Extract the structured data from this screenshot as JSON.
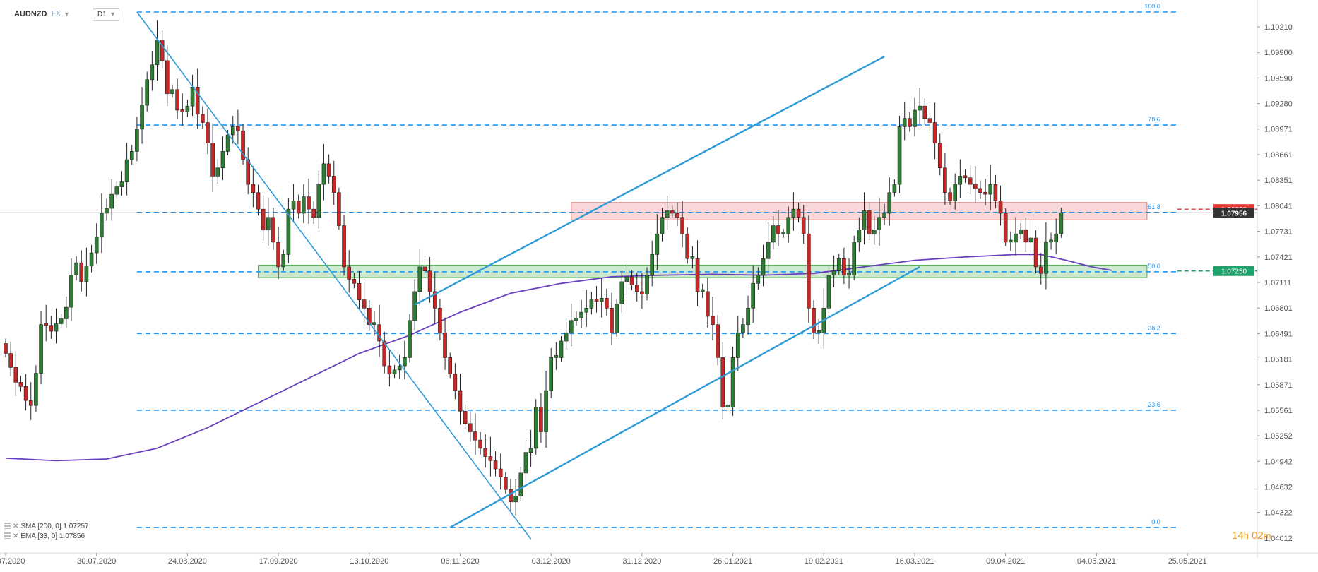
{
  "header": {
    "symbol": "AUDNZD",
    "market": "FX",
    "timeframe": "D1"
  },
  "indicators": [
    {
      "label": "SMA [200, 0] 1.07257"
    },
    {
      "label": "EMA [33, 0] 1.07856"
    }
  ],
  "countdown": {
    "hours": "14",
    "h_unit": "h",
    "minutes": "02",
    "m_unit": "m"
  },
  "colors": {
    "bull": "#2e7d32",
    "bear": "#c62828",
    "sma": "#6a3fbf",
    "trend": "#2f9bd8",
    "fib": "#2196f3",
    "resistance_zone": "#e57373",
    "support_zone": "#4caf50"
  },
  "chart_data": {
    "type": "candlestick",
    "symbol": "AUDNZD",
    "timeframe": "D1",
    "y_axis": {
      "ticks": [
        1.1021,
        1.099,
        1.0959,
        1.0928,
        1.08971,
        1.08661,
        1.08351,
        1.08041,
        1.07731,
        1.07421,
        1.07111,
        1.06801,
        1.06491,
        1.06181,
        1.05871,
        1.05561,
        1.05252,
        1.04942,
        1.04632,
        1.04322,
        1.04012
      ],
      "ylim": [
        1.039,
        1.1045
      ]
    },
    "x_axis": {
      "labels": [
        "06.07.2020",
        "30.07.2020",
        "24.08.2020",
        "17.09.2020",
        "13.10.2020",
        "06.11.2020",
        "03.12.2020",
        "31.12.2020",
        "26.01.2021",
        "19.02.2021",
        "16.03.2021",
        "09.04.2021",
        "04.05.2021",
        "25.05.2021"
      ],
      "label_bar_index": [
        0,
        18,
        36,
        54,
        72,
        90,
        108,
        126,
        144,
        162,
        180,
        198,
        216,
        234
      ]
    },
    "candles_close": [
      1.0625,
      1.0608,
      1.059,
      1.0585,
      1.0568,
      1.0562,
      1.0601,
      1.066,
      1.0659,
      1.0652,
      1.0661,
      1.0667,
      1.0681,
      1.072,
      1.0735,
      1.0712,
      1.0731,
      1.0747,
      1.0766,
      1.0795,
      1.0801,
      1.0818,
      1.0827,
      1.0833,
      1.086,
      1.087,
      1.0897,
      1.0926,
      1.0957,
      1.0975,
      1.1005,
      1.098,
      1.094,
      1.0945,
      1.092,
      1.0918,
      1.0925,
      1.0948,
      1.0915,
      1.0905,
      1.088,
      1.084,
      1.085,
      1.087,
      1.089,
      1.09,
      1.0895,
      1.086,
      1.083,
      1.082,
      1.08,
      1.0775,
      1.079,
      1.076,
      1.073,
      1.0745,
      1.08,
      1.081,
      1.0795,
      1.0815,
      1.08,
      1.079,
      1.083,
      1.0855,
      1.084,
      1.082,
      1.078,
      1.073,
      1.0715,
      1.071,
      1.069,
      1.068,
      1.066,
      1.066,
      1.064,
      1.061,
      1.06,
      1.0605,
      1.061,
      1.062,
      1.0665,
      1.07,
      1.073,
      1.0725,
      1.07,
      1.068,
      1.065,
      1.062,
      1.06,
      1.058,
      1.0555,
      1.054,
      1.053,
      1.052,
      1.051,
      1.05,
      1.0495,
      1.0485,
      1.0475,
      1.046,
      1.0445,
      1.0452,
      1.048,
      1.0505,
      1.051,
      1.056,
      1.053,
      1.058,
      1.062,
      1.062,
      1.064,
      1.065,
      1.0665,
      1.0668,
      1.0675,
      1.068,
      1.069,
      1.0688,
      1.0692,
      1.068,
      1.065,
      1.0685,
      1.0712,
      1.0718,
      1.0708,
      1.07,
      1.0697,
      1.072,
      1.0745,
      1.077,
      1.079,
      1.0798,
      1.0795,
      1.079,
      1.077,
      1.074,
      1.074,
      1.07,
      1.07,
      1.067,
      1.066,
      1.062,
      1.056,
      1.056,
      1.062,
      1.065,
      1.066,
      1.068,
      1.071,
      1.072,
      1.074,
      1.076,
      1.078,
      1.077,
      1.077,
      1.079,
      1.08,
      1.079,
      1.077,
      1.068,
      1.065,
      1.065,
      1.068,
      1.072,
      1.0725,
      1.074,
      1.072,
      1.072,
      1.076,
      1.0775,
      1.0798,
      1.077,
      1.0775,
      1.079,
      1.0795,
      1.082,
      1.083,
      1.09,
      1.091,
      1.09,
      1.092,
      1.0925,
      1.091,
      1.0905,
      1.088,
      1.085,
      1.082,
      1.081,
      1.083,
      1.084,
      1.0838,
      1.083,
      1.0825,
      1.082,
      1.0818,
      1.083,
      1.081,
      1.0795,
      1.076,
      1.076,
      1.077,
      1.0775,
      1.076,
      1.0765,
      1.073,
      1.0722,
      1.076,
      1.076,
      1.077,
      1.07956
    ],
    "sma_200": {
      "name": "SMA [200, 0]",
      "last": 1.07257,
      "points": [
        [
          0,
          1.0498
        ],
        [
          10,
          1.0495
        ],
        [
          20,
          1.0497
        ],
        [
          30,
          1.051
        ],
        [
          40,
          1.0535
        ],
        [
          50,
          1.0565
        ],
        [
          60,
          1.0595
        ],
        [
          70,
          1.0625
        ],
        [
          80,
          1.0647
        ],
        [
          90,
          1.0675
        ],
        [
          100,
          1.0698
        ],
        [
          110,
          1.071
        ],
        [
          120,
          1.0718
        ],
        [
          130,
          1.072
        ],
        [
          140,
          1.0721
        ],
        [
          150,
          1.072
        ],
        [
          160,
          1.0722
        ],
        [
          170,
          1.073
        ],
        [
          180,
          1.0738
        ],
        [
          190,
          1.0742
        ],
        [
          200,
          1.0745
        ],
        [
          205,
          1.0745
        ],
        [
          210,
          1.0738
        ],
        [
          215,
          1.073
        ],
        [
          219,
          1.07257
        ]
      ]
    },
    "ema_33": {
      "name": "EMA [33, 0]",
      "last": 1.07856
    },
    "fibonacci": {
      "levels": [
        {
          "label": "100.0",
          "price": 1.1039
        },
        {
          "label": "78.6",
          "price": 1.0902
        },
        {
          "label": "61.8",
          "price": 1.0796
        },
        {
          "label": "50.0",
          "price": 1.0724
        },
        {
          "label": "38.2",
          "price": 1.06491
        },
        {
          "label": "23.6",
          "price": 1.05561
        },
        {
          "label": "0.0",
          "price": 1.0414
        }
      ],
      "start_bar": 26,
      "end_bar": 232
    },
    "zones": [
      {
        "name": "resistance",
        "from_bar": 112,
        "to_bar": 226,
        "top": 1.0808,
        "bottom": 1.0787
      },
      {
        "name": "support",
        "from_bar": 50,
        "to_bar": 226,
        "top": 1.0732,
        "bottom": 1.0717
      }
    ],
    "trendlines": [
      {
        "name": "descending",
        "from": [
          26,
          1.1039
        ],
        "to": [
          104,
          1.04
        ]
      },
      {
        "name": "channel-upper",
        "from": [
          81,
          1.0684
        ],
        "to": [
          174,
          1.0985
        ]
      },
      {
        "name": "channel-lower",
        "from": [
          88,
          1.0414
        ],
        "to": [
          181,
          1.073
        ]
      }
    ],
    "price_labels": [
      {
        "name": "resistance-level",
        "text": "1.08000",
        "price": 1.08,
        "color": "#e53935"
      },
      {
        "name": "current-price",
        "text": "1.07956",
        "price": 1.07956,
        "color": "#333333"
      },
      {
        "name": "support-level",
        "text": "1.07250",
        "price": 1.0725,
        "color": "#1fa36b"
      }
    ],
    "current_price": 1.07956
  }
}
